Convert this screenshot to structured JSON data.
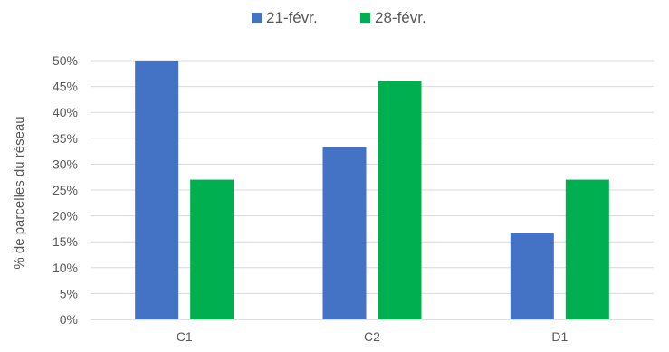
{
  "chart_data": {
    "type": "bar",
    "title": "",
    "xlabel": "",
    "ylabel": "% de parcelles du réseau",
    "categories": [
      "C1",
      "C2",
      "D1"
    ],
    "series": [
      {
        "name": "21-févr.",
        "color": "#4472C4",
        "values": [
          50,
          33.3,
          16.7
        ]
      },
      {
        "name": "28-févr.",
        "color": "#00B050",
        "values": [
          27,
          46,
          27
        ]
      }
    ],
    "ylim": [
      0,
      50
    ],
    "yticks": [
      0,
      5,
      10,
      15,
      20,
      25,
      30,
      35,
      40,
      45,
      50
    ],
    "ytick_labels": [
      "0%",
      "5%",
      "10%",
      "15%",
      "20%",
      "25%",
      "30%",
      "35%",
      "40%",
      "45%",
      "50%"
    ],
    "grid": true,
    "legend_position": "top"
  }
}
